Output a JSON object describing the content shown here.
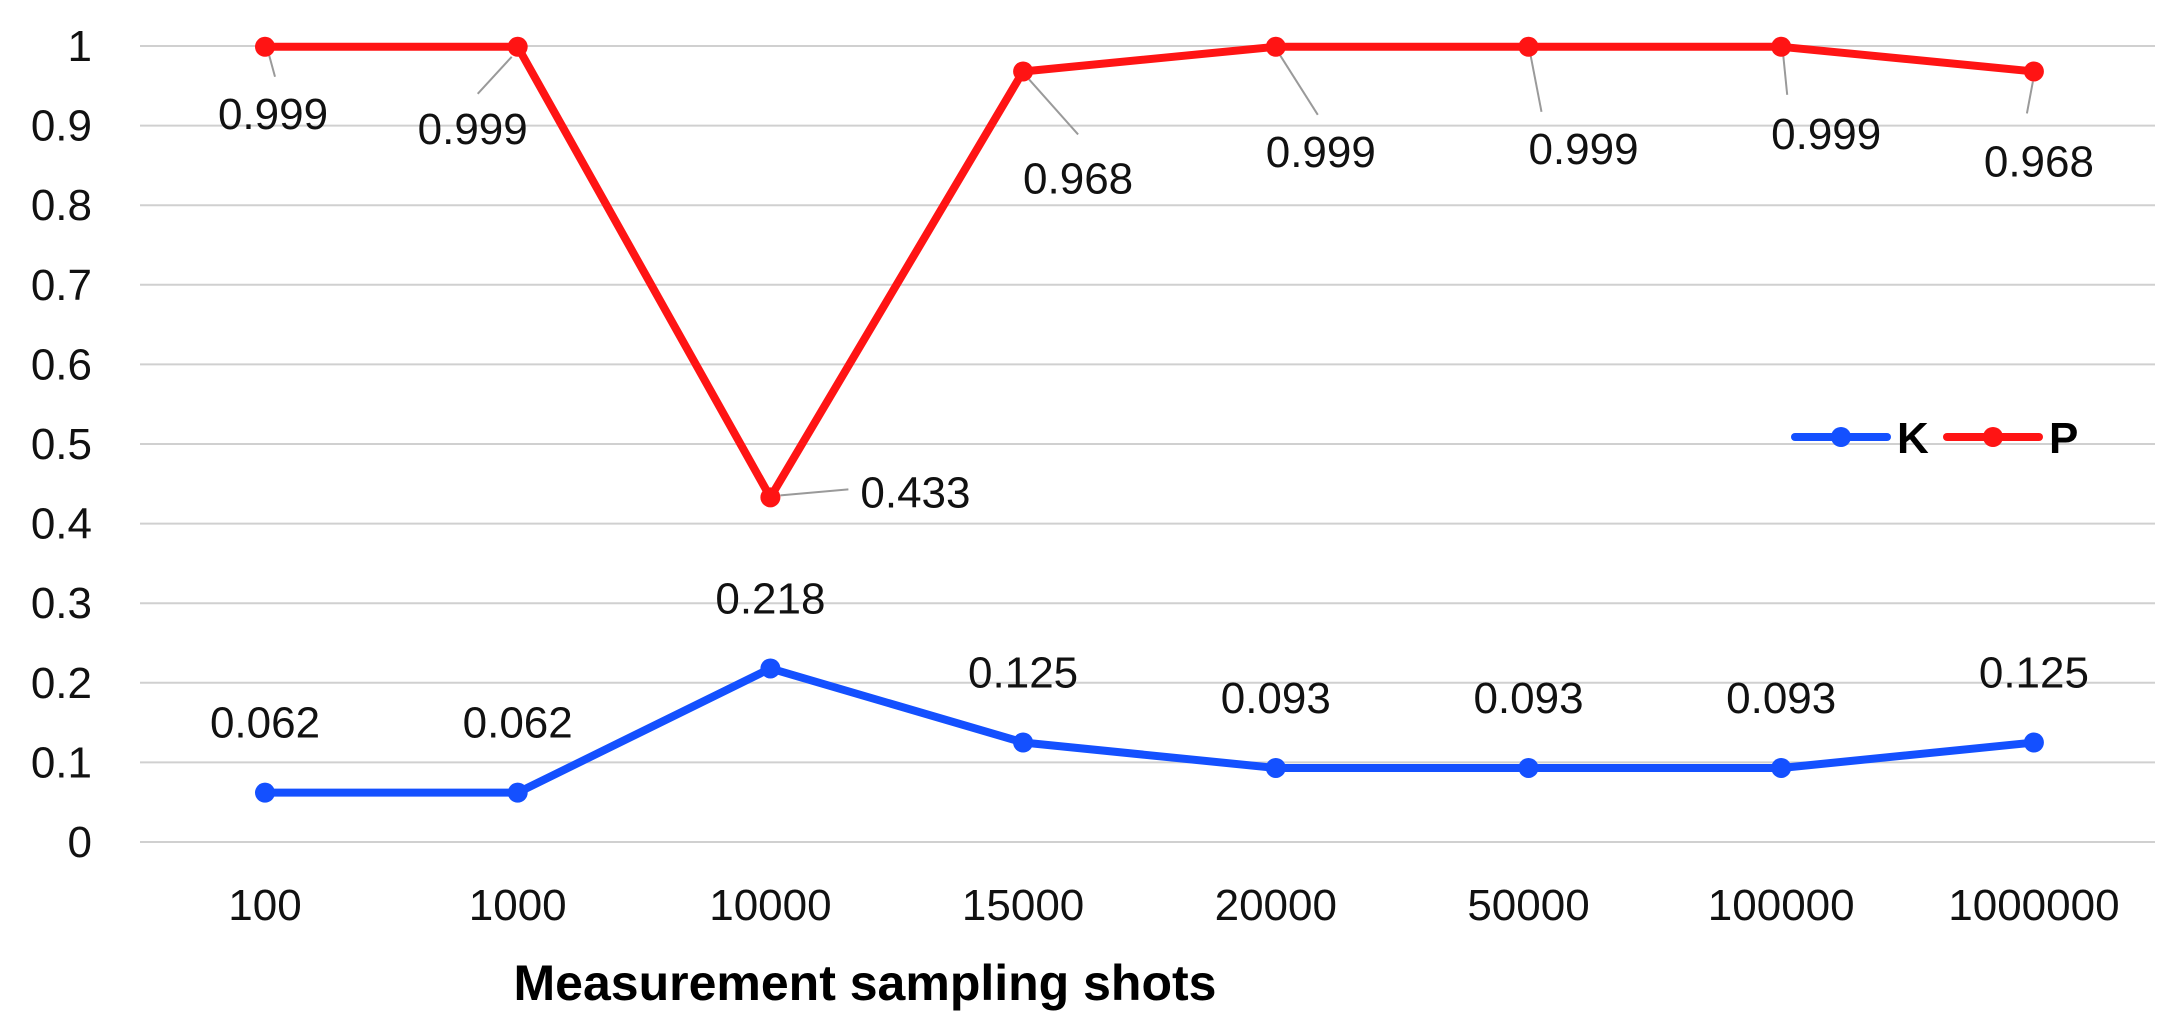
{
  "chart_data": {
    "type": "line",
    "title": "",
    "xlabel": "Measurement sampling shots",
    "ylabel": "",
    "ylim": [
      0,
      1
    ],
    "yticks": [
      "0",
      "0.1",
      "0.2",
      "0.3",
      "0.4",
      "0.5",
      "0.6",
      "0.7",
      "0.8",
      "0.9",
      "1"
    ],
    "categories": [
      "100",
      "1000",
      "10000",
      "15000",
      "20000",
      "50000",
      "100000",
      "1000000"
    ],
    "grid": true,
    "legend": "right",
    "series": [
      {
        "name": "K",
        "color": "#1450ff",
        "values": [
          0.062,
          0.062,
          0.218,
          0.125,
          0.093,
          0.093,
          0.093,
          0.125
        ],
        "labels": [
          "0.062",
          "0.062",
          "0.218",
          "0.125",
          "0.093",
          "0.093",
          "0.093",
          "0.125"
        ]
      },
      {
        "name": "P",
        "color": "#ff1414",
        "values": [
          0.999,
          0.999,
          0.433,
          0.968,
          0.999,
          0.999,
          0.999,
          0.968
        ],
        "labels": [
          "0.999",
          "0.999",
          "0.433",
          "0.968",
          "0.999",
          "0.999",
          "0.999",
          "0.968"
        ]
      }
    ]
  }
}
